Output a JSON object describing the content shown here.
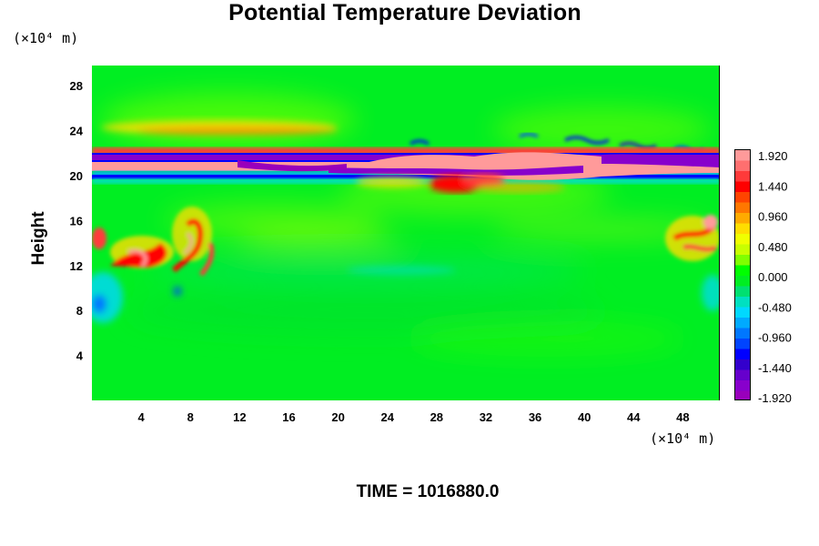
{
  "chart_data": {
    "type": "heatmap",
    "title": "Potential Temperature Deviation",
    "ylabel": "Height",
    "xlabel": "",
    "x_unit": "(×10⁴ m)",
    "y_unit": "(×10⁴ m)",
    "x_ticks": [
      4,
      8,
      12,
      16,
      20,
      24,
      28,
      32,
      36,
      40,
      44,
      48
    ],
    "y_ticks": [
      4,
      8,
      12,
      16,
      20,
      24,
      28
    ],
    "xlim": [
      0,
      51
    ],
    "ylim": [
      0,
      29.8
    ],
    "colorbar": {
      "labels": [
        "1.920",
        "1.440",
        "0.960",
        "0.480",
        "0.000",
        "-0.480",
        "-0.960",
        "-1.440",
        "-1.920"
      ],
      "min": -1.92,
      "max": 1.92,
      "levels": 24,
      "colors_top_to_bottom": [
        "#ff9a9a",
        "#ff6f6f",
        "#ff3a3a",
        "#ff0000",
        "#ff4400",
        "#ff7700",
        "#ffaa00",
        "#ffdd00",
        "#f0ff00",
        "#c8ff00",
        "#80ff00",
        "#00ff00",
        "#00ee22",
        "#00e070",
        "#00e0c0",
        "#00d8ff",
        "#00aaff",
        "#0077ff",
        "#0044ff",
        "#0000ff",
        "#3300cc",
        "#6600cc",
        "#8800cc",
        "#9900bb"
      ]
    },
    "features": {
      "background_value": 0.0,
      "upper_layer_height": 21,
      "warm_patches_near_height": 13
    }
  },
  "footer": {
    "time_text": "TIME = 1016880.0"
  }
}
